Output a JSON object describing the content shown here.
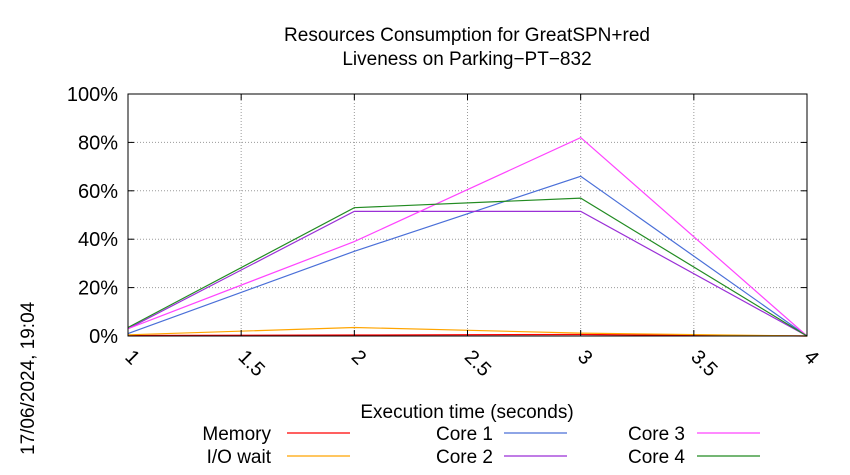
{
  "chart_data": {
    "type": "line",
    "title_line1": "Resources Consumption for GreatSPN+red",
    "title_line2": "Liveness on Parking−PT−832",
    "xlabel": "Execution time (seconds)",
    "ylabel": "",
    "xlim": [
      1,
      4
    ],
    "ylim": [
      0,
      100
    ],
    "x_ticks": [
      "1",
      "1.5",
      "2",
      "2.5",
      "3",
      "3.5",
      "4"
    ],
    "y_ticks": [
      "0%",
      "20%",
      "40%",
      "60%",
      "80%",
      "100%"
    ],
    "grid": true,
    "legend_position": "bottom",
    "x": [
      1,
      2,
      3,
      4
    ],
    "series": [
      {
        "name": "Memory",
        "color": "#ff0000",
        "values": [
          0.2,
          0.4,
          0.6,
          0
        ]
      },
      {
        "name": "I/O wait",
        "color": "#ffa500",
        "values": [
          0.5,
          3.5,
          1.2,
          0
        ]
      },
      {
        "name": "Core 1",
        "color": "#4a6fd8",
        "values": [
          1,
          35,
          66,
          0
        ]
      },
      {
        "name": "Core 2",
        "color": "#9a2fd6",
        "values": [
          3,
          51.5,
          51.5,
          0
        ]
      },
      {
        "name": "Core 3",
        "color": "#ff44ff",
        "values": [
          3,
          39,
          82,
          0
        ]
      },
      {
        "name": "Core 4",
        "color": "#228b22",
        "values": [
          3.5,
          53,
          57,
          0
        ]
      }
    ]
  },
  "timestamp": "17/06/2024, 19:04"
}
